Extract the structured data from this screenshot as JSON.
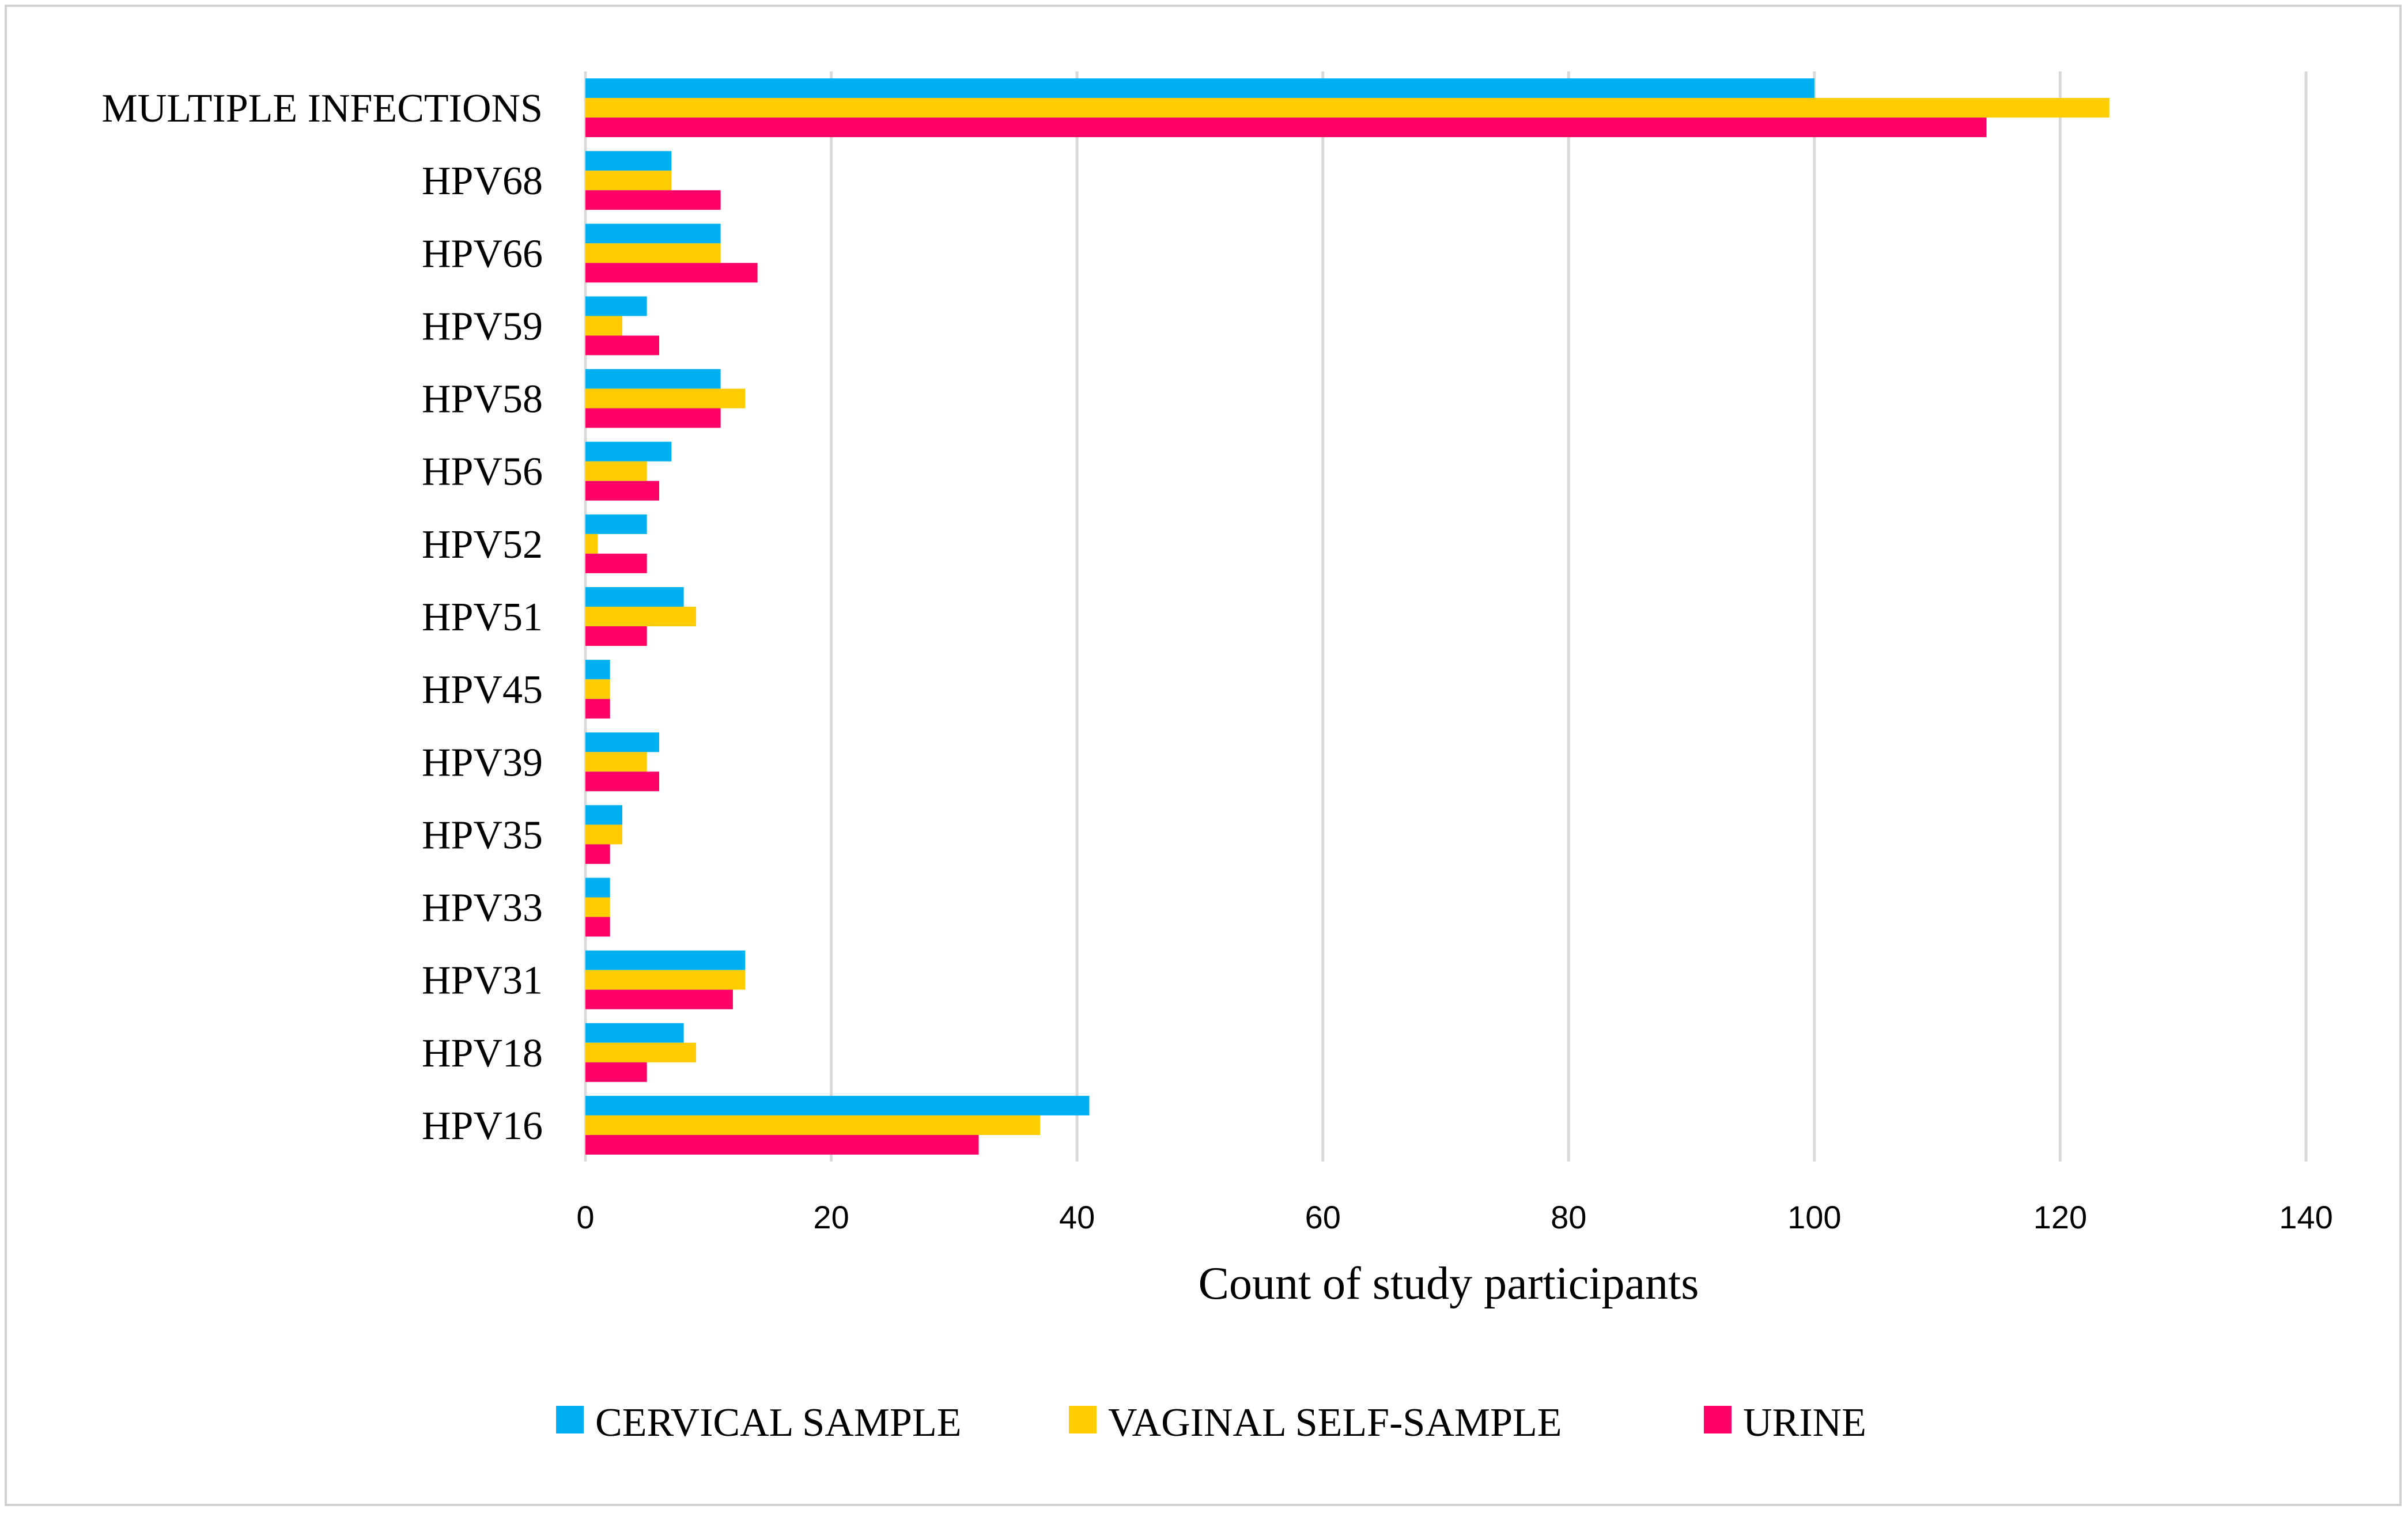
{
  "chart_data": {
    "type": "bar",
    "orientation": "horizontal",
    "categories": [
      "HPV16",
      "HPV18",
      "HPV31",
      "HPV33",
      "HPV35",
      "HPV39",
      "HPV45",
      "HPV51",
      "HPV52",
      "HPV56",
      "HPV58",
      "HPV59",
      "HPV66",
      "HPV68",
      "MULTIPLE INFECTIONS"
    ],
    "series": [
      {
        "name": "CERVICAL SAMPLE",
        "color": "#00b0f0",
        "values": [
          41,
          8,
          13,
          2,
          3,
          6,
          2,
          8,
          5,
          7,
          11,
          5,
          11,
          7,
          100
        ]
      },
      {
        "name": "VAGINAL SELF-SAMPLE",
        "color": "#ffcc00",
        "values": [
          37,
          9,
          13,
          2,
          3,
          5,
          2,
          9,
          1,
          5,
          13,
          3,
          11,
          7,
          124
        ]
      },
      {
        "name": "URINE",
        "color": "#ff0066",
        "values": [
          32,
          5,
          12,
          2,
          2,
          6,
          2,
          5,
          5,
          6,
          11,
          6,
          14,
          11,
          114
        ]
      }
    ],
    "xlabel": "Count of study participants",
    "ylabel": "",
    "xlim": [
      0,
      140
    ],
    "ticks": [
      "0",
      "20",
      "40",
      "60",
      "80",
      "100",
      "120",
      "140"
    ],
    "grid": true,
    "legend_position": "bottom"
  }
}
